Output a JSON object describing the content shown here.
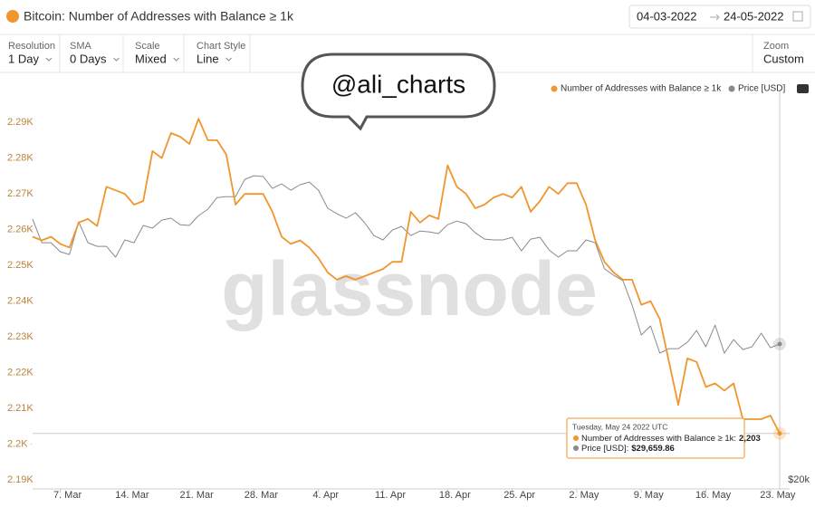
{
  "header": {
    "date_from": "04-03-2022",
    "date_to": "24-05-2022"
  },
  "controls": [
    {
      "label": "Resolution",
      "value": "1 Day"
    },
    {
      "label": "SMA",
      "value": "0 Days"
    },
    {
      "label": "Scale",
      "value": "Mixed"
    },
    {
      "label": "Chart Style",
      "value": "Line"
    }
  ],
  "zoom": {
    "label": "Zoom",
    "value": "Custom"
  },
  "annotation": "@ali_charts",
  "watermark": "glassnode",
  "chart_data": {
    "type": "line",
    "title": "Bitcoin: Number of Addresses with Balance ≥ 1k",
    "x": [
      "4. Mar",
      "5. Mar",
      "6. Mar",
      "7. Mar",
      "8. Mar",
      "9. Mar",
      "10. Mar",
      "11. Mar",
      "12. Mar",
      "13. Mar",
      "14. Mar",
      "15. Mar",
      "16. Mar",
      "17. Mar",
      "18. Mar",
      "19. Mar",
      "20. Mar",
      "21. Mar",
      "22. Mar",
      "23. Mar",
      "24. Mar",
      "25. Mar",
      "26. Mar",
      "27. Mar",
      "28. Mar",
      "29. Mar",
      "30. Mar",
      "31. Mar",
      "1. Apr",
      "2. Apr",
      "3. Apr",
      "4. Apr",
      "5. Apr",
      "6. Apr",
      "7. Apr",
      "8. Apr",
      "9. Apr",
      "10. Apr",
      "11. Apr",
      "12. Apr",
      "13. Apr",
      "14. Apr",
      "15. Apr",
      "16. Apr",
      "17. Apr",
      "18. Apr",
      "19. Apr",
      "20. Apr",
      "21. Apr",
      "22. Apr",
      "23. Apr",
      "24. Apr",
      "25. Apr",
      "26. Apr",
      "27. Apr",
      "28. Apr",
      "29. Apr",
      "30. Apr",
      "1. May",
      "2. May",
      "3. May",
      "4. May",
      "5. May",
      "6. May",
      "7. May",
      "8. May",
      "9. May",
      "10. May",
      "11. May",
      "12. May",
      "13. May",
      "14. May",
      "15. May",
      "16. May",
      "17. May",
      "18. May",
      "19. May",
      "20. May",
      "21. May",
      "22. May",
      "23. May",
      "24. May"
    ],
    "xticks": [
      "7. Mar",
      "14. Mar",
      "21. Mar",
      "28. Mar",
      "4. Apr",
      "11. Apr",
      "18. Apr",
      "25. Apr",
      "2. May",
      "9. May",
      "16. May",
      "23. May"
    ],
    "series": [
      {
        "name": "Number of Addresses with Balance ≥ 1k",
        "color": "#f0962e",
        "values": [
          2258,
          2257,
          2258,
          2256,
          2255,
          2262,
          2263,
          2261,
          2272,
          2271,
          2270,
          2267,
          2268,
          2282,
          2280,
          2287,
          2286,
          2284,
          2291,
          2285,
          2285,
          2281,
          2267,
          2270,
          2270,
          2270,
          2265,
          2258,
          2256,
          2257,
          2255,
          2252,
          2248,
          2246,
          2247,
          2246,
          2247,
          2248,
          2249,
          2251,
          2251,
          2265,
          2262,
          2264,
          2263,
          2278,
          2272,
          2270,
          2266,
          2267,
          2269,
          2270,
          2269,
          2272,
          2265,
          2268,
          2272,
          2270,
          2273,
          2273,
          2267,
          2257,
          2251,
          2248,
          2246,
          2246,
          2239,
          2240,
          2235,
          2223,
          2211,
          2224,
          2223,
          2216,
          2217,
          2215,
          2217,
          2207,
          2207,
          2207,
          2208,
          2203
        ]
      },
      {
        "name": "Price [USD]",
        "color": "#8a8a8a",
        "axis": "y2",
        "values": [
          42620,
          39800,
          39800,
          38770,
          38470,
          42290,
          39800,
          39390,
          39390,
          38170,
          40130,
          39800,
          41850,
          41520,
          42500,
          42740,
          41940,
          41850,
          43070,
          43870,
          45380,
          45500,
          45500,
          47840,
          48350,
          48230,
          46600,
          47220,
          46360,
          47100,
          47460,
          46360,
          43990,
          43300,
          42740,
          43420,
          42180,
          40640,
          40130,
          41290,
          41730,
          40640,
          41170,
          41080,
          40870,
          41940,
          42380,
          42060,
          40960,
          40220,
          40130,
          40130,
          40430,
          38870,
          40220,
          40430,
          38970,
          38170,
          38880,
          38880,
          40130,
          39800,
          36900,
          36210,
          35650,
          33220,
          30450,
          31260,
          28890,
          29270,
          29270,
          29820,
          30850,
          29430,
          31340,
          28890,
          30050,
          29190,
          29430,
          30610,
          29350,
          29659.86
        ]
      }
    ],
    "ylim": [
      2187.5,
      2302.7
    ],
    "yticks": [
      {
        "value": 2190,
        "label": "2.19K"
      },
      {
        "value": 2200,
        "label": "2.2K"
      },
      {
        "value": 2210,
        "label": "2.21K"
      },
      {
        "value": 2220,
        "label": "2.22K"
      },
      {
        "value": 2230,
        "label": "2.23K"
      },
      {
        "value": 2240,
        "label": "2.24K"
      },
      {
        "value": 2250,
        "label": "2.25K"
      },
      {
        "value": 2260,
        "label": "2.26K"
      },
      {
        "value": 2270,
        "label": "2.27K"
      },
      {
        "value": 2280,
        "label": "2.28K"
      },
      {
        "value": 2290,
        "label": "2.29K"
      }
    ],
    "y2lim": [
      19480,
      64400
    ],
    "y2ticks": [
      {
        "value": 20000,
        "label": "$20k"
      }
    ],
    "y2_log": true,
    "grid": false,
    "legend": "top-right",
    "tooltip": {
      "date": "Tuesday, May 24 2022 UTC",
      "rows": [
        {
          "label": "Number of Addresses with Balance ≥ 1k:",
          "value_label": "2,203"
        },
        {
          "label": "Price [USD]:",
          "value_label": "$29,659.86"
        }
      ]
    }
  }
}
